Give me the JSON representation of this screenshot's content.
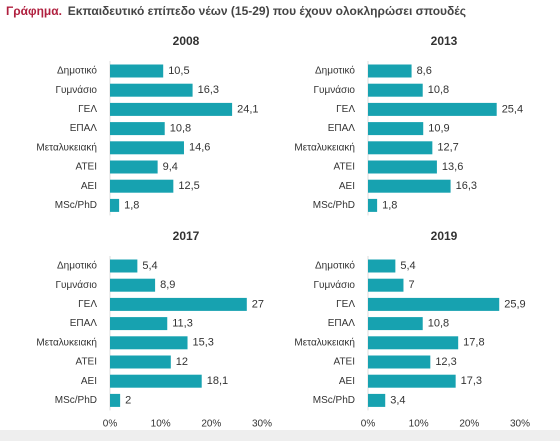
{
  "title": {
    "prefix": "Γράφημα.",
    "text": "Εκπαιδευτικό επίπεδο νέων (15-29) που έχουν ολοκληρώσει σπουδές"
  },
  "chart_data": [
    {
      "type": "bar",
      "title": "2008",
      "color": "#17a2b0",
      "categories": [
        "Δημοτικό",
        "Γυμνάσιο",
        "ΓΕΛ",
        "ΕΠΑΛ",
        "Μεταλυκειακή",
        "ΑΤΕΙ",
        "ΑΕΙ",
        "MSc/PhD"
      ],
      "values": [
        10.5,
        16.3,
        24.1,
        10.8,
        14.6,
        9.4,
        12.5,
        1.8
      ],
      "value_labels": [
        "10,5",
        "16,3",
        "24,1",
        "10,8",
        "14,6",
        "9,4",
        "12,5",
        "1,8"
      ],
      "xlim": [
        0,
        30
      ]
    },
    {
      "type": "bar",
      "title": "2013",
      "color": "#17a2b0",
      "categories": [
        "Δημοτικό",
        "Γυμνάσιο",
        "ΓΕΛ",
        "ΕΠΑΛ",
        "Μεταλυκειακή",
        "ΑΤΕΙ",
        "ΑΕΙ",
        "MSc/PhD"
      ],
      "values": [
        8.6,
        10.8,
        25.4,
        10.9,
        12.7,
        13.6,
        16.3,
        1.8
      ],
      "value_labels": [
        "8,6",
        "10,8",
        "25,4",
        "10,9",
        "12,7",
        "13,6",
        "16,3",
        "1,8"
      ],
      "xlim": [
        0,
        30
      ]
    },
    {
      "type": "bar",
      "title": "2017",
      "color": "#17a2b0",
      "categories": [
        "Δημοτικό",
        "Γυμνάσιο",
        "ΓΕΛ",
        "ΕΠΑΛ",
        "Μεταλυκειακή",
        "ΑΤΕΙ",
        "ΑΕΙ",
        "MSc/PhD"
      ],
      "values": [
        5.4,
        8.9,
        27,
        11.3,
        15.3,
        12,
        18.1,
        2
      ],
      "value_labels": [
        "5,4",
        "8,9",
        "27",
        "11,3",
        "15,3",
        "12",
        "18,1",
        "2"
      ],
      "xlim": [
        0,
        30
      ],
      "xticks": [
        {
          "value": 0,
          "label": "0%"
        },
        {
          "value": 10,
          "label": "10%"
        },
        {
          "value": 20,
          "label": "20%"
        },
        {
          "value": 30,
          "label": "30%"
        }
      ]
    },
    {
      "type": "bar",
      "title": "2019",
      "color": "#17a2b0",
      "categories": [
        "Δημοτικό",
        "Γυμνάσιο",
        "ΓΕΛ",
        "ΕΠΑΛ",
        "Μεταλυκειακή",
        "ΑΤΕΙ",
        "ΑΕΙ",
        "MSc/PhD"
      ],
      "values": [
        5.4,
        7,
        25.9,
        10.8,
        17.8,
        12.3,
        17.3,
        3.4
      ],
      "value_labels": [
        "5,4",
        "7",
        "25,9",
        "10,8",
        "17,8",
        "12,3",
        "17,3",
        "3,4"
      ],
      "xlim": [
        0,
        30
      ],
      "xticks": [
        {
          "value": 0,
          "label": "0%"
        },
        {
          "value": 10,
          "label": "10%"
        },
        {
          "value": 20,
          "label": "20%"
        },
        {
          "value": 30,
          "label": "30%"
        }
      ]
    }
  ]
}
